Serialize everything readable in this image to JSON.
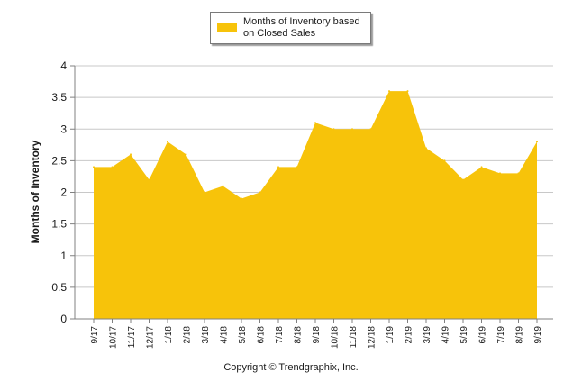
{
  "legend": {
    "label": "Months of Inventory based on Closed Sales"
  },
  "footer": {
    "copyright": "Copyright © Trendgraphix, Inc."
  },
  "colors": {
    "fill": "#f7c30a",
    "grid": "#c8c8c8",
    "axis": "#808080"
  },
  "chart_data": {
    "type": "area",
    "title": "",
    "xlabel": "",
    "ylabel": "Months of Inventory",
    "ylim": [
      0,
      4
    ],
    "yticks": [
      0,
      0.5,
      1,
      1.5,
      2,
      2.5,
      3,
      3.5,
      4
    ],
    "ytick_labels": [
      "0",
      "0.5",
      "1",
      "1.5",
      "2",
      "2.5",
      "3",
      "3.5",
      "4"
    ],
    "categories": [
      "9/17",
      "10/17",
      "11/17",
      "12/17",
      "1/18",
      "2/18",
      "3/18",
      "4/18",
      "5/18",
      "6/18",
      "7/18",
      "8/18",
      "9/18",
      "10/18",
      "11/18",
      "12/18",
      "1/19",
      "2/19",
      "3/19",
      "4/19",
      "5/19",
      "6/19",
      "7/19",
      "8/19",
      "9/19"
    ],
    "series": [
      {
        "name": "Months of Inventory based on Closed Sales",
        "values": [
          2.4,
          2.4,
          2.6,
          2.2,
          2.8,
          2.6,
          2.0,
          2.1,
          1.9,
          2.0,
          2.4,
          2.4,
          3.1,
          3.0,
          3.0,
          3.0,
          3.6,
          3.6,
          2.7,
          2.5,
          2.2,
          2.4,
          2.3,
          2.3,
          2.8
        ]
      }
    ],
    "grid": true,
    "legend_position": "top-center"
  }
}
